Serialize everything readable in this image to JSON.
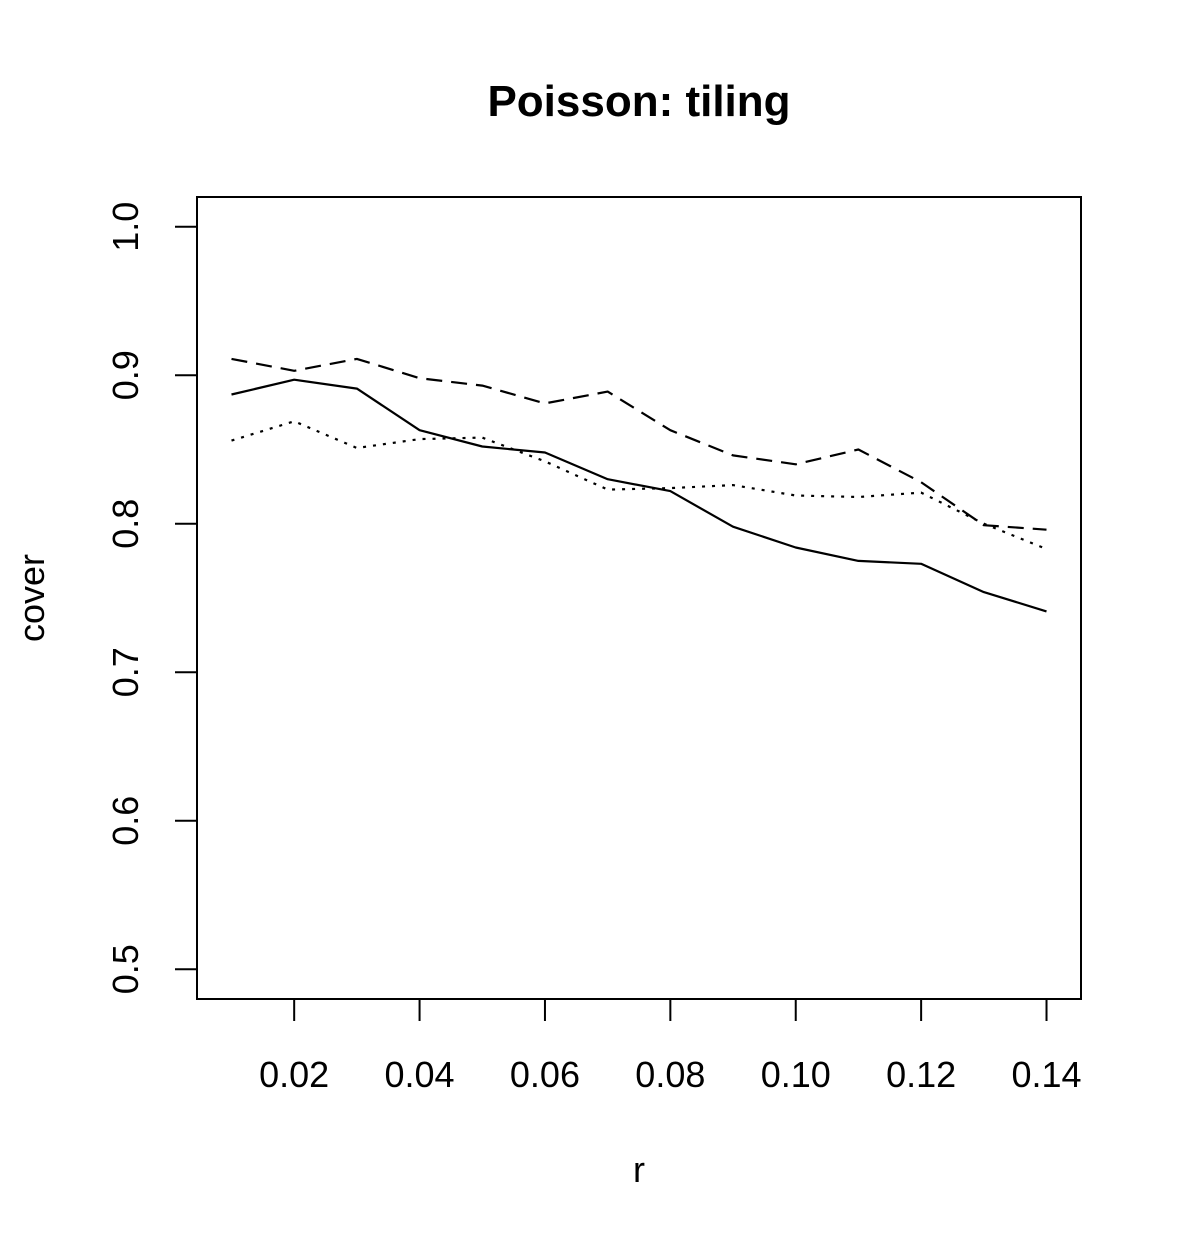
{
  "chart_data": {
    "type": "line",
    "title": "Poisson: tiling",
    "xlabel": "r",
    "ylabel": "cover",
    "xlim": [
      0.0045,
      0.1455
    ],
    "ylim": [
      0.48,
      1.02
    ],
    "xticks": [
      0.02,
      0.04,
      0.06,
      0.08,
      0.1,
      0.12,
      0.14
    ],
    "xtick_labels": [
      "0.02",
      "0.04",
      "0.06",
      "0.08",
      "0.10",
      "0.12",
      "0.14"
    ],
    "yticks": [
      0.5,
      0.6,
      0.7,
      0.8,
      0.9,
      1.0
    ],
    "ytick_labels": [
      "0.5",
      "0.6",
      "0.7",
      "0.8",
      "0.9",
      "1.0"
    ],
    "grid": false,
    "x": [
      0.01,
      0.02,
      0.03,
      0.04,
      0.05,
      0.06,
      0.07,
      0.08,
      0.09,
      0.1,
      0.11,
      0.12,
      0.13,
      0.14
    ],
    "series": [
      {
        "style": "solid",
        "values": [
          0.887,
          0.897,
          0.891,
          0.863,
          0.852,
          0.848,
          0.83,
          0.822,
          0.798,
          0.784,
          0.775,
          0.773,
          0.754,
          0.741
        ]
      },
      {
        "style": "dashed",
        "values": [
          0.911,
          0.903,
          0.911,
          0.898,
          0.893,
          0.881,
          0.889,
          0.863,
          0.846,
          0.84,
          0.85,
          0.828,
          0.799,
          0.796
        ]
      },
      {
        "style": "dotted",
        "values": [
          0.856,
          0.869,
          0.851,
          0.857,
          0.858,
          0.842,
          0.823,
          0.824,
          0.826,
          0.819,
          0.818,
          0.821,
          0.8,
          0.783
        ]
      }
    ]
  }
}
